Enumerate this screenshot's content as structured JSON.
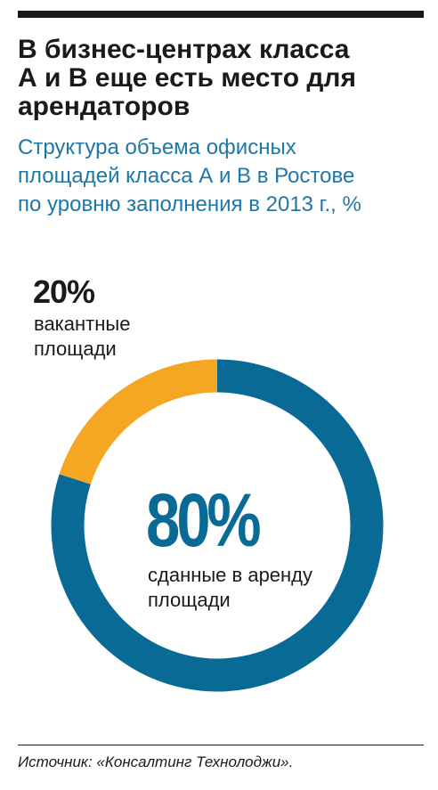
{
  "header": {
    "title": "В бизнес-центрах класса\nА и В еще есть место для\nарендаторов",
    "subtitle": "Структура объема офисных\nплощадей класса А и В в Ростове\nпо уровню заполнения в 2013 г., %"
  },
  "colors": {
    "rented": "#0a6a96",
    "vacant": "#f5a623",
    "title": "#1a1a1a",
    "subtitle": "#1f77a8"
  },
  "chart_data": {
    "type": "pie",
    "title": "",
    "categories": [
      "вакантные\nплощади",
      "сданные в аренду\nплощади"
    ],
    "values": [
      20,
      80
    ],
    "labels": [
      "20%",
      "80%"
    ],
    "unit": "%",
    "legend": "none"
  },
  "footer": {
    "source": "Источник: «Консалтинг Технолоджи»."
  }
}
